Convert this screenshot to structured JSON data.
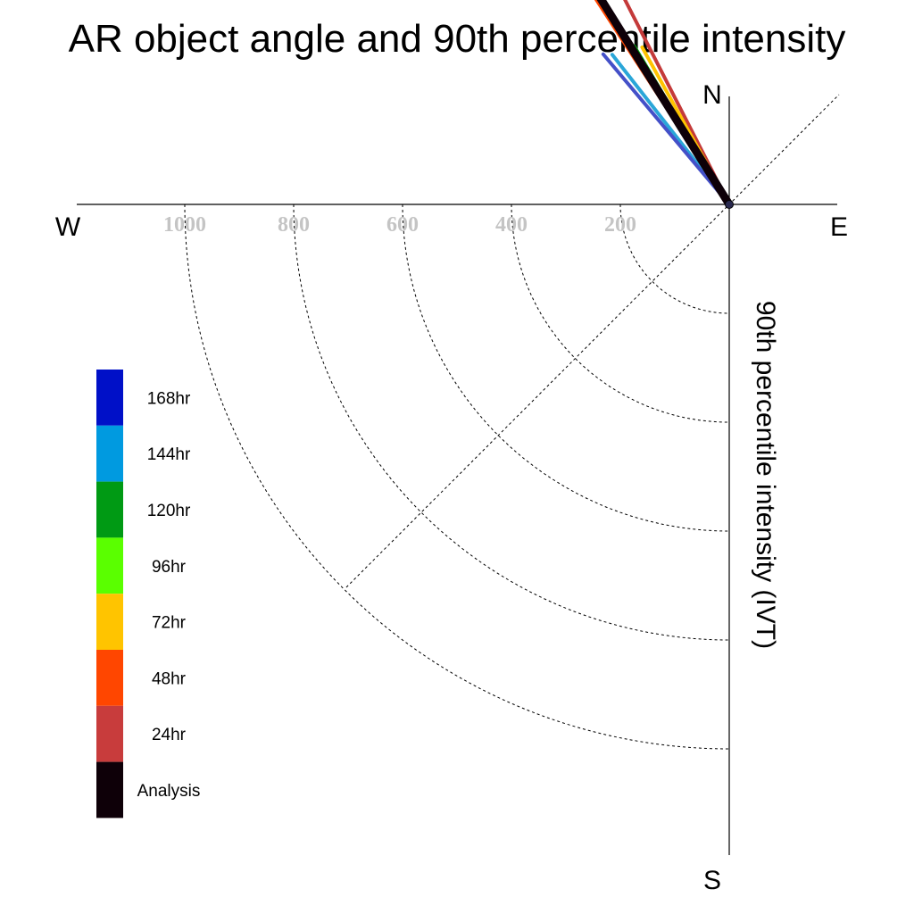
{
  "chart_data": {
    "type": "polar-vector",
    "title": "AR object angle and 90th percentile intensity",
    "ylabel": "90th percentile intensity (IVT)",
    "compass": {
      "north": "N",
      "south": "S",
      "east": "E",
      "west": "W"
    },
    "r_ticks": [
      "1000",
      "800",
      "600",
      "400",
      "200"
    ],
    "r_tick_values": [
      1000,
      800,
      600,
      400,
      200
    ],
    "rlim": [
      0,
      1000
    ],
    "grid": true,
    "legend_position": "left",
    "legend": [
      {
        "label": "168hr",
        "color": "#0010c8"
      },
      {
        "label": "144hr",
        "color": "#009ae0"
      },
      {
        "label": "120hr",
        "color": "#009a14"
      },
      {
        "label": "96hr",
        "color": "#5aff00"
      },
      {
        "label": "72hr",
        "color": "#ffc400"
      },
      {
        "label": "48hr",
        "color": "#ff4600"
      },
      {
        "label": "24hr",
        "color": "#c83c3c"
      },
      {
        "label": "Analysis",
        "color": "#0e0008"
      }
    ],
    "series": [
      {
        "name": "24hr",
        "color": "#c43a3a",
        "angle_deg": 243,
        "intensity": 475
      },
      {
        "name": "72hr",
        "color": "#ffc400",
        "angle_deg": 241,
        "intensity": 330
      },
      {
        "name": "96hr",
        "color": "#5aff00",
        "angle_deg": 239,
        "intensity": 337
      },
      {
        "name": "120hr",
        "color": "#009a14",
        "angle_deg": 239,
        "intensity": 339
      },
      {
        "name": "144hr",
        "color": "#2aa6d8",
        "angle_deg": 232,
        "intensity": 349
      },
      {
        "name": "168hr",
        "color": "#4450c8",
        "angle_deg": 230,
        "intensity": 360
      },
      {
        "name": "48hr",
        "color": "#ff4600",
        "angle_deg": 237,
        "intensity": 460
      },
      {
        "name": "Analysis",
        "color": "#0e0008",
        "angle_deg": 238,
        "intensity": 555
      }
    ]
  }
}
